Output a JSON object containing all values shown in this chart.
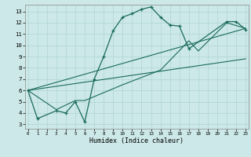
{
  "bg_color": "#cce8e8",
  "grid_color": "#b0d4d4",
  "line_color": "#1a6b5a",
  "xlabel": "Humidex (Indice chaleur)",
  "ylim": [
    2.6,
    13.6
  ],
  "xlim": [
    -0.3,
    23.3
  ],
  "yticks": [
    3,
    4,
    5,
    6,
    7,
    8,
    9,
    10,
    11,
    12,
    13
  ],
  "xticks": [
    0,
    1,
    2,
    3,
    4,
    5,
    6,
    7,
    8,
    9,
    10,
    11,
    12,
    13,
    14,
    15,
    16,
    17,
    18,
    19,
    20,
    21,
    22,
    23
  ],
  "line1_x": [
    0,
    1,
    3,
    4,
    5,
    6,
    7,
    8,
    9,
    10,
    11,
    12,
    13,
    14,
    15,
    16,
    17,
    21,
    22,
    23
  ],
  "line1_y": [
    6.0,
    3.5,
    4.2,
    4.0,
    5.0,
    3.2,
    7.0,
    9.0,
    11.3,
    12.5,
    12.8,
    13.2,
    13.4,
    12.5,
    11.8,
    11.7,
    9.7,
    12.1,
    12.1,
    11.4
  ],
  "line2_x": [
    0,
    3,
    5,
    6,
    10,
    14,
    17,
    18,
    21,
    23
  ],
  "line2_y": [
    6.0,
    4.3,
    5.1,
    5.1,
    6.5,
    7.8,
    10.4,
    9.5,
    12.0,
    11.5
  ],
  "line3_x": [
    0,
    23
  ],
  "line3_y": [
    6.0,
    11.5
  ],
  "line4_x": [
    0,
    23
  ],
  "line4_y": [
    6.0,
    8.8
  ]
}
